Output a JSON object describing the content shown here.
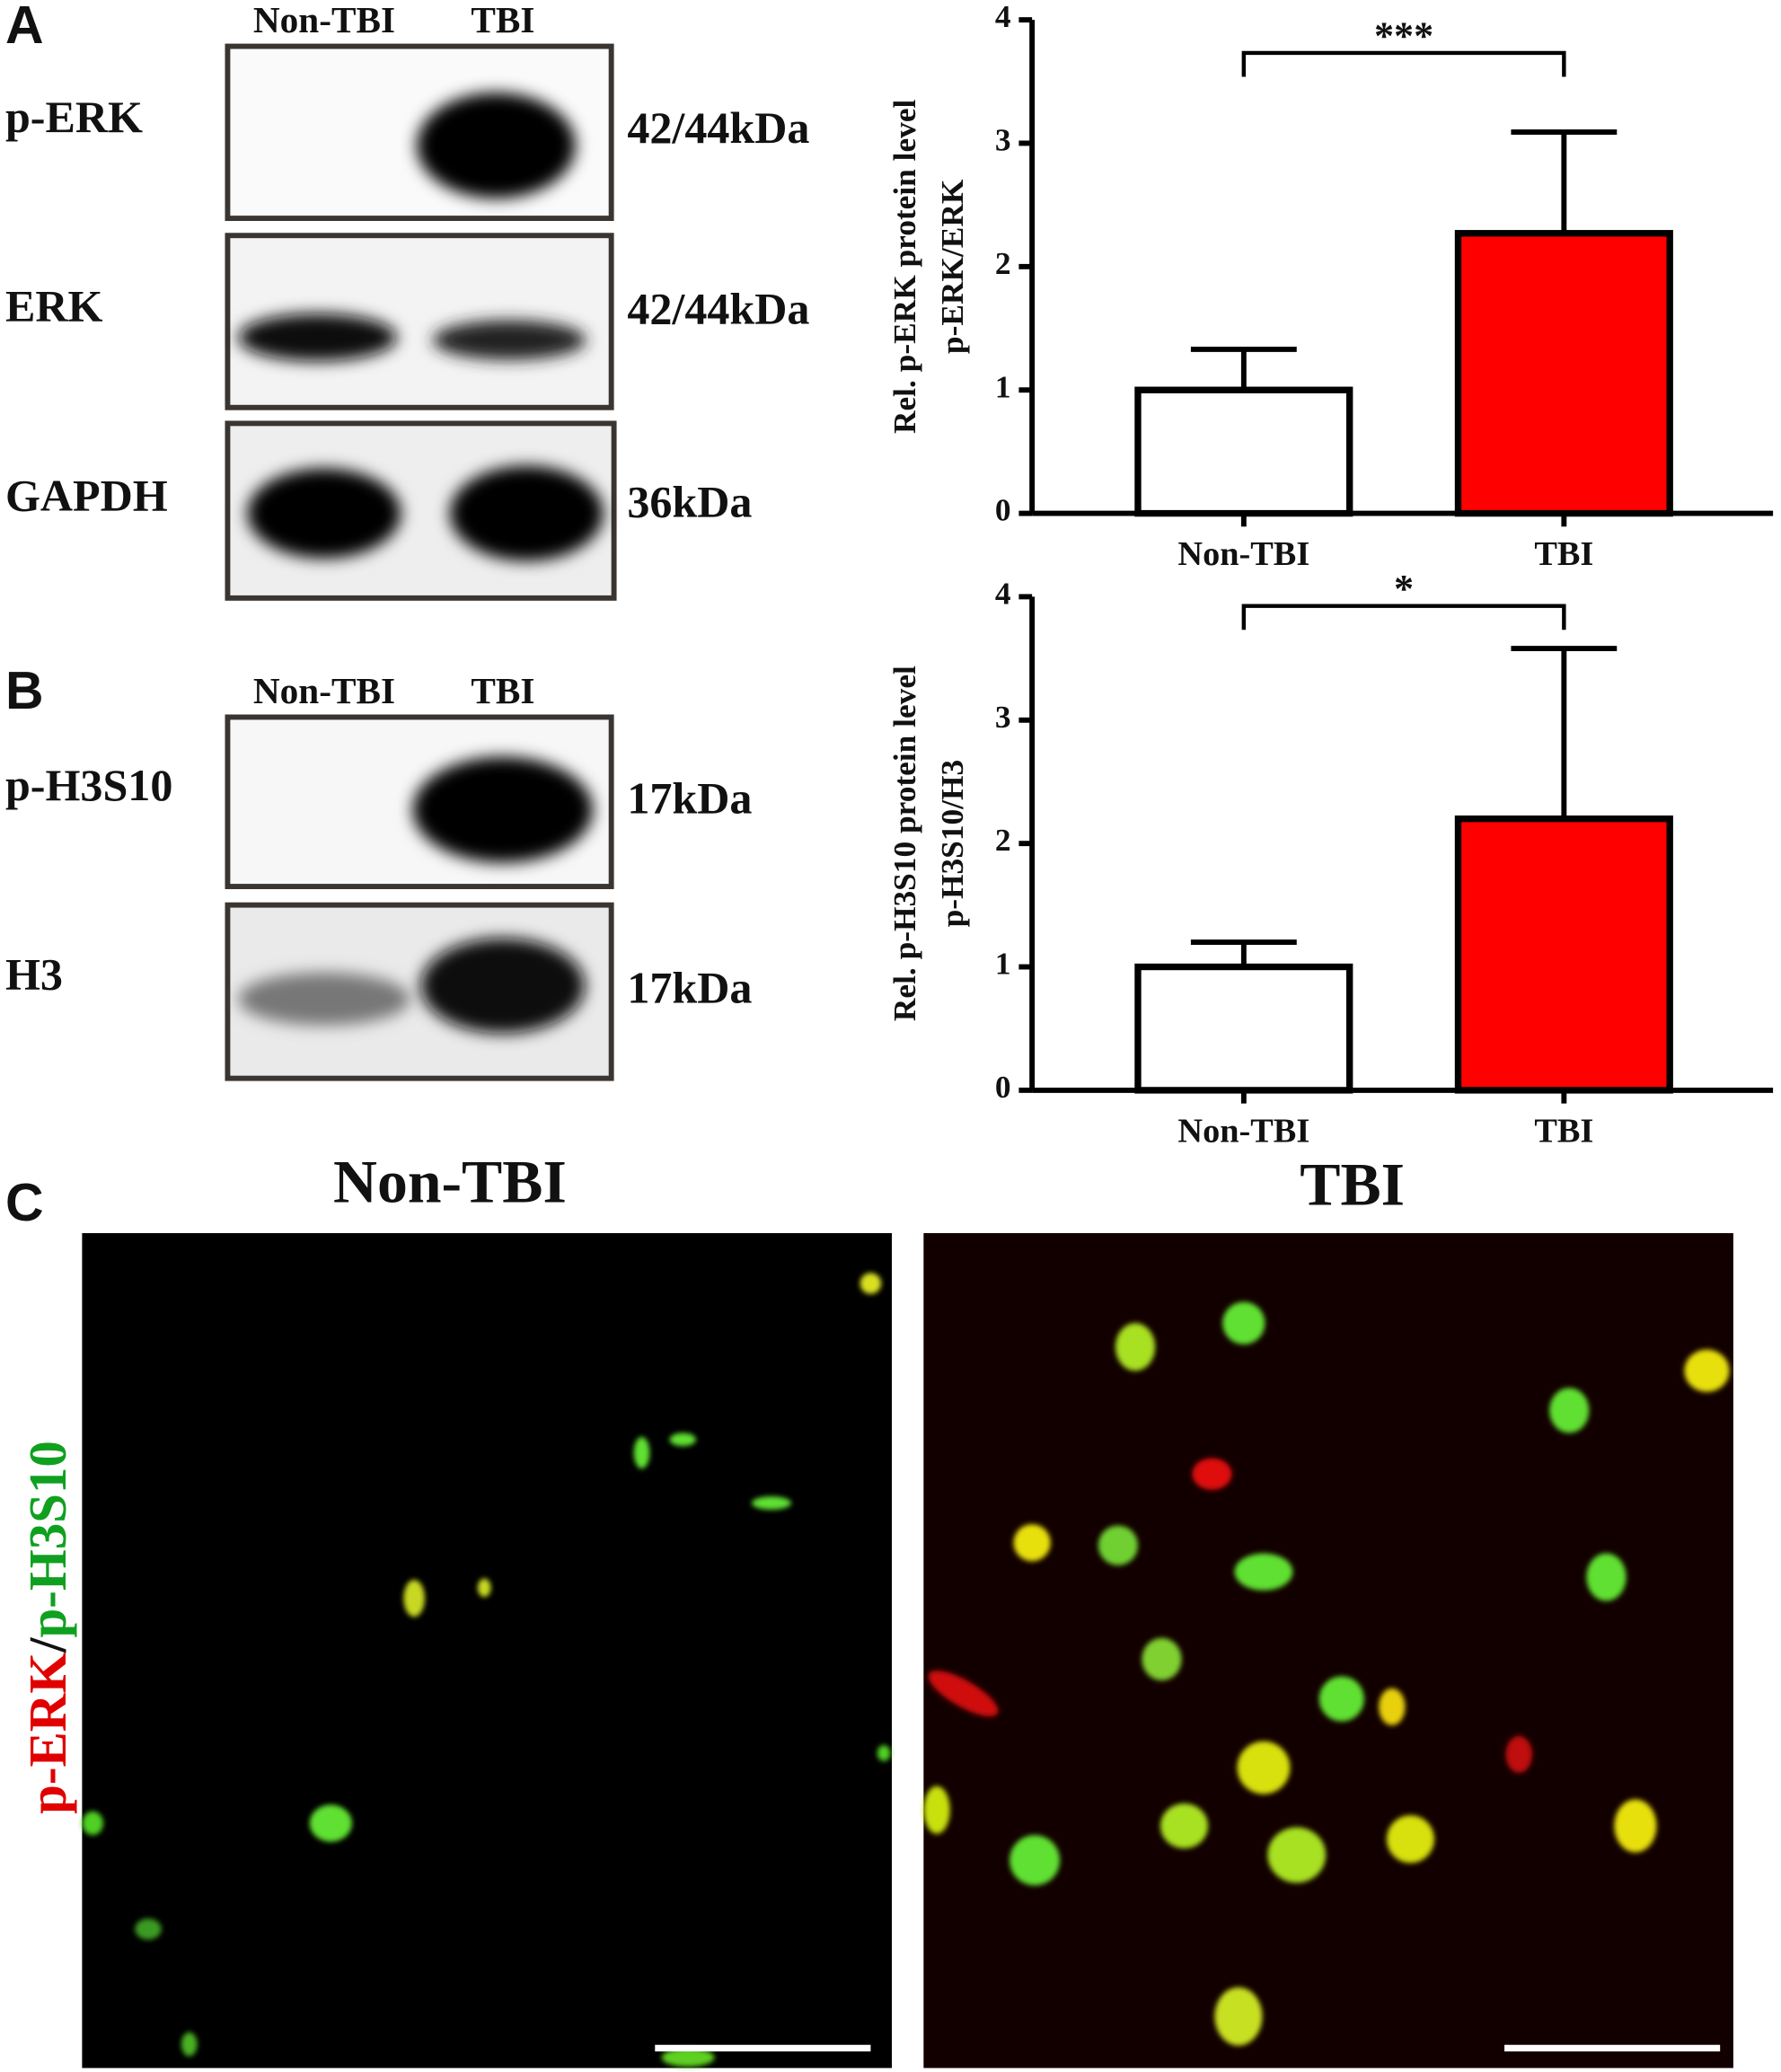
{
  "blots": {
    "panel_a": {
      "label": "A",
      "lanes": [
        "Non-TBI",
        "TBI"
      ],
      "rows": [
        {
          "protein": "p-ERK",
          "size": "42/44kDa"
        },
        {
          "protein": "ERK",
          "size": "42/44kDa"
        },
        {
          "protein": "GAPDH",
          "size": "36kDa"
        }
      ]
    },
    "panel_b": {
      "label": "B",
      "lanes": [
        "Non-TBI",
        "TBI"
      ],
      "rows": [
        {
          "protein": "p-H3S10",
          "size": "17kDa"
        },
        {
          "protein": "H3",
          "size": "17kDa"
        }
      ]
    }
  },
  "imaging": {
    "label": "C",
    "titles": [
      "Non-TBI",
      "TBI"
    ],
    "stain": [
      "p-ERK",
      "/",
      "p-H3S10"
    ]
  },
  "chart_data": [
    {
      "type": "bar",
      "y_label": [
        "Rel. p-ERK protein level",
        "p-ERK/ERK"
      ],
      "categories": [
        "Non-TBI",
        "TBI"
      ],
      "values": [
        1.0,
        2.27
      ],
      "errors": [
        0.33,
        0.82
      ],
      "colors": [
        "#ffffff",
        "#ff0000"
      ],
      "ylim": [
        0,
        4
      ],
      "yticks": [
        0,
        1,
        2,
        3,
        4
      ],
      "significance": "***"
    },
    {
      "type": "bar",
      "y_label": [
        "Rel. p-H3S10 protein level",
        "p-H3S10/H3"
      ],
      "categories": [
        "Non-TBI",
        "TBI"
      ],
      "values": [
        1.0,
        2.2
      ],
      "errors": [
        0.2,
        1.38
      ],
      "colors": [
        "#ffffff",
        "#ff0000"
      ],
      "ylim": [
        0,
        4
      ],
      "yticks": [
        0,
        1,
        2,
        3,
        4
      ],
      "significance": "*"
    }
  ]
}
